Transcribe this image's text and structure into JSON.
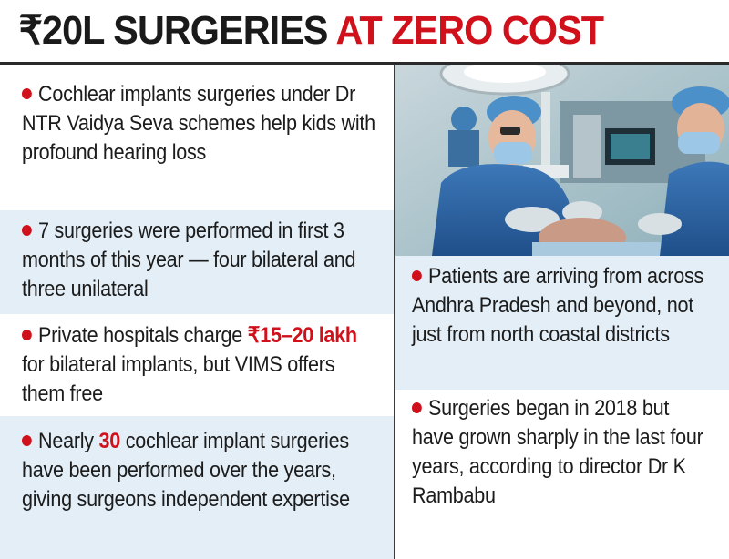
{
  "headline": {
    "prefix": "₹20L SURGERIES",
    "highlight": "AT ZERO COST"
  },
  "colors": {
    "accent_red": "#d0111c",
    "panel_blue": "#e3eef7"
  },
  "left_panels": [
    {
      "text": "Cochlear implants surgeries under Dr NTR Vaidya Seva schemes help kids with profound hearing loss"
    },
    {
      "text": "7 surgeries were performed in first 3 months of this year — four bilateral and three unilateral"
    },
    {
      "before": "Private hospitals charge ",
      "highlight": "₹15–20 lakh",
      "after": " for bilateral implants, but VIMS offers them free"
    },
    {
      "before": "Nearly ",
      "highlight": "30",
      "after": " cochlear implant surgeries have been performed over the years, giving surgeons independent expertise"
    }
  ],
  "right_panels": [
    {
      "text": "Patients are arriving from across Andhra Pradesh and beyond, not just from north coastal districts"
    },
    {
      "text": "Surgeries began in 2018 but have grown sharply in the last four years, according to director Dr K Rambabu"
    }
  ],
  "photo": {
    "icon": "surgery-photo"
  }
}
